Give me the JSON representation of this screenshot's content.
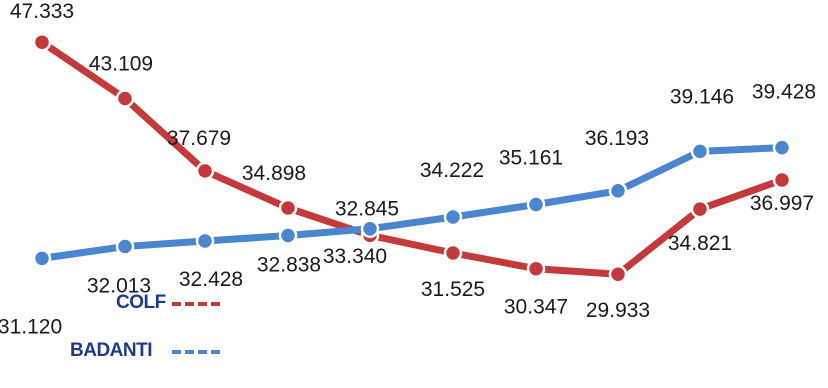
{
  "chart_data": {
    "type": "line",
    "title": "",
    "xlabel": "",
    "ylabel": "",
    "x": [
      1,
      2,
      3,
      4,
      5,
      6,
      7,
      8,
      9,
      10
    ],
    "ylim": [
      28,
      49
    ],
    "grid": false,
    "legend_position": "bottom-left",
    "series": [
      {
        "name": "COLF",
        "color": "#c43a3a",
        "values": [
          47.333,
          43.109,
          37.679,
          34.898,
          32.845,
          31.525,
          30.347,
          29.933,
          34.821,
          36.997
        ],
        "labels": [
          "47.333",
          "43.109",
          "37.679",
          "34.898",
          "32.845",
          "31.525",
          "30.347",
          "29.933",
          "34.821",
          "36.997"
        ]
      },
      {
        "name": "BADANTI",
        "color": "#4a86d0",
        "values": [
          31.12,
          32.013,
          32.428,
          32.838,
          33.34,
          34.222,
          35.161,
          36.193,
          39.146,
          39.428
        ],
        "labels": [
          "31.120",
          "32.013",
          "32.428",
          "32.838",
          "33.340",
          "34.222",
          "35.161",
          "36.193",
          "39.146",
          "39.428"
        ]
      }
    ]
  },
  "legend": {
    "items": [
      {
        "label": "COLF",
        "color": "#c43a3a"
      },
      {
        "label": "BADANTI",
        "color": "#4a86d0"
      }
    ]
  }
}
